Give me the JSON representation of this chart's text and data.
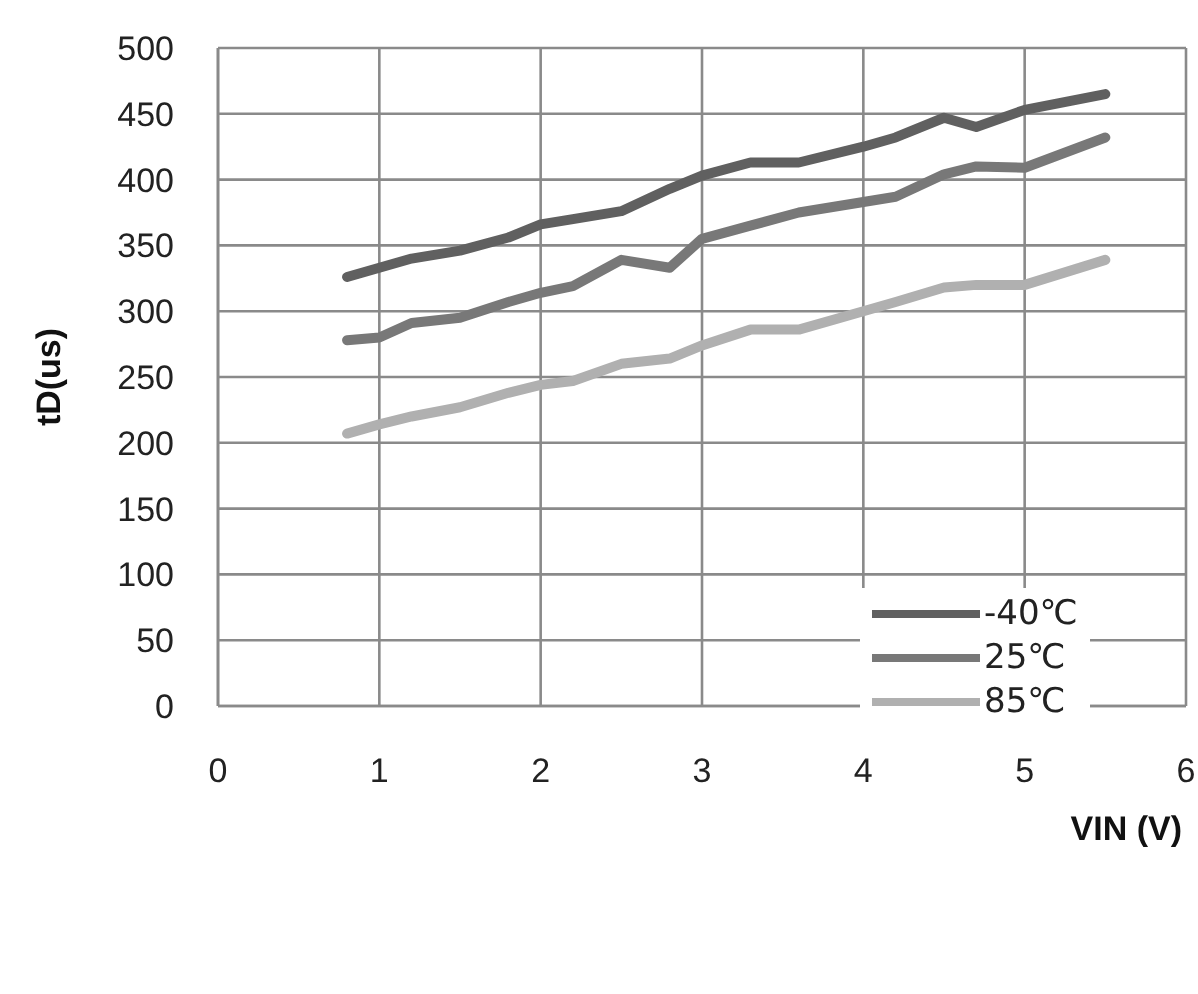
{
  "chart_data": {
    "type": "line",
    "xlabel": "VIN (V)",
    "ylabel": "tD(us)",
    "x": [
      0.8,
      1.0,
      1.2,
      1.5,
      1.8,
      2.0,
      2.2,
      2.5,
      2.8,
      3.0,
      3.3,
      3.6,
      4.0,
      4.2,
      4.5,
      4.7,
      5.0,
      5.5
    ],
    "series": [
      {
        "name": "-40℃",
        "color": "#606060",
        "values": [
          326,
          333,
          340,
          346,
          356,
          366,
          370,
          376,
          393,
          403,
          413,
          413,
          425,
          432,
          447,
          440,
          453,
          465
        ]
      },
      {
        "name": "25℃",
        "color": "#787878",
        "values": [
          278,
          280,
          291,
          295,
          307,
          314,
          319,
          339,
          333,
          355,
          365,
          375,
          383,
          387,
          404,
          410,
          409,
          432
        ]
      },
      {
        "name": "85℃",
        "color": "#b0b0b0",
        "values": [
          207,
          214,
          220,
          227,
          238,
          244,
          247,
          260,
          264,
          274,
          286,
          286,
          300,
          307,
          318,
          320,
          320,
          339
        ]
      }
    ],
    "xlim": [
      0,
      6
    ],
    "xticks": [
      0,
      1,
      2,
      3,
      4,
      5,
      6
    ],
    "ylim": [
      0,
      500
    ],
    "yticks": [
      0,
      50,
      100,
      150,
      200,
      250,
      300,
      350,
      400,
      450,
      500
    ],
    "grid": true,
    "legend": "bottom right",
    "marker": "none",
    "line_style": "solid"
  }
}
